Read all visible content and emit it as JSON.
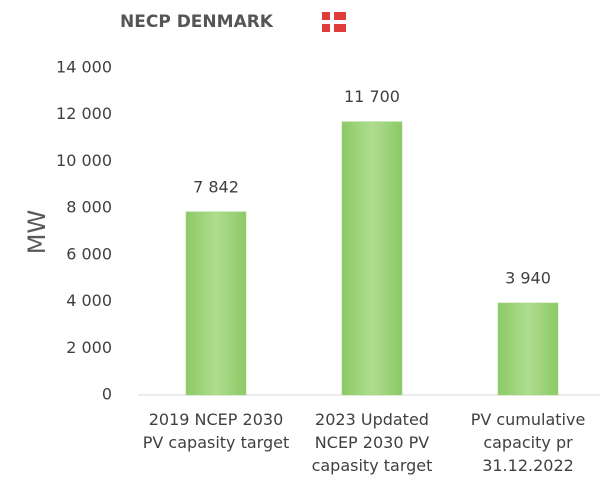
{
  "chart_data": {
    "type": "bar",
    "title": "NECP DENMARK",
    "ylabel": "MW",
    "categories": [
      "2019 NCEP 2030 PV capasity target",
      "2023 Updated NCEP 2030 PV capasity target",
      "PV cumulative capacity pr 31.12.2022"
    ],
    "values": [
      7842,
      11700,
      3940
    ],
    "value_labels": [
      "7 842",
      "11 700",
      "3 940"
    ],
    "color": "#9dd47a",
    "ylim": [
      0,
      14000
    ],
    "yticks": [
      0,
      {
        "value": 2000,
        "label": "2 000"
      },
      {
        "value": 4000,
        "label": "4 000"
      },
      {
        "value": 6000,
        "label": "6 000"
      },
      {
        "value": 8000,
        "label": "8 000"
      },
      {
        "value": 10000,
        "label": "10 000"
      },
      {
        "value": 12000,
        "label": "12 000"
      },
      {
        "value": 14000,
        "label": "14 000"
      }
    ],
    "grid": false
  }
}
